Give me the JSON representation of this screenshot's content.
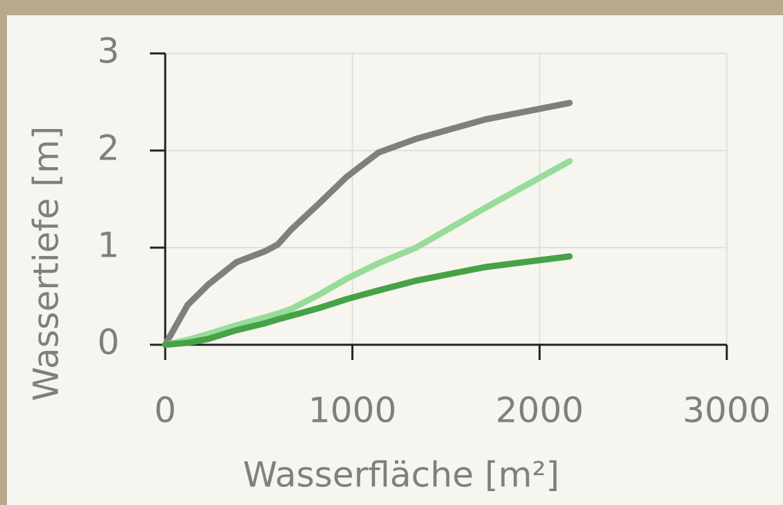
{
  "chart_data": {
    "type": "line",
    "x_label": "Wasserfläche [m²]",
    "y_label": "Wassertiefe [m]",
    "x": [
      0,
      120,
      230,
      380,
      530,
      600,
      675,
      825,
      970,
      1140,
      1340,
      1710,
      2160
    ],
    "series": [
      {
        "color": "#7f7f7f",
        "values": [
          0,
          0.41,
          0.62,
          0.85,
          0.96,
          1.03,
          1.19,
          1.46,
          1.73,
          1.98,
          2.12,
          2.32,
          2.49
        ]
      },
      {
        "color": "#98dc9a",
        "values": [
          0,
          0.05,
          0.11,
          0.2,
          0.28,
          0.32,
          0.37,
          0.52,
          0.68,
          0.84,
          1.0,
          1.41,
          1.89
        ]
      },
      {
        "color": "#46a247",
        "values": [
          0,
          0.02,
          0.06,
          0.15,
          0.22,
          0.26,
          0.3,
          0.38,
          0.47,
          0.56,
          0.66,
          0.8,
          0.91
        ]
      }
    ],
    "xlim": [
      0,
      3000
    ],
    "xticks": [
      0,
      1000,
      2000,
      3000
    ],
    "ylim": [
      0,
      3
    ],
    "yticks": [
      0,
      1,
      2,
      3
    ],
    "grid": true
  }
}
